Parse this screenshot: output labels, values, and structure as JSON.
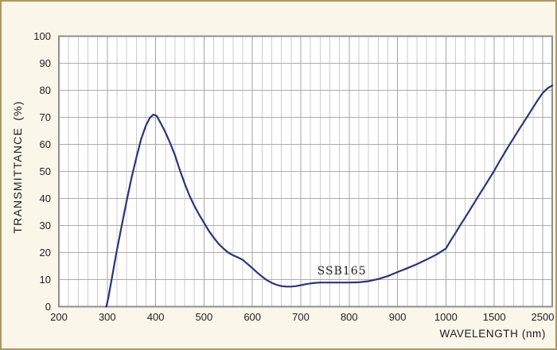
{
  "colors": {
    "page_background": "#faf6ea",
    "page_border": "#b0975f",
    "plot_background": "#ffffff",
    "plot_frame": "#8f8f8f",
    "grid_minor": "#cdcdcd",
    "grid_major": "#a5a5a5",
    "grid_horizontal": "#ababab",
    "curve": "#27357d",
    "text": "#1f1f1f"
  },
  "chart_data": {
    "type": "line",
    "title": "",
    "xlabel": "WAVELENGTH (nm)",
    "ylabel": "TRANSMITTANCE (%)",
    "grid": "on",
    "ylim": [
      0,
      100
    ],
    "y_ticks": [
      0,
      10,
      20,
      30,
      40,
      50,
      60,
      70,
      80,
      90,
      100
    ],
    "x_ticks": [
      200,
      300,
      400,
      500,
      600,
      700,
      800,
      900,
      1000,
      1500,
      2500
    ],
    "x_axis_end": 2700,
    "x_scale_note": "piecewise linear: each major division equals 100 nm from 200-1000, 500 nm from 1000-1500, 1000 nm from 1500-2500; 5 minor divisions per major; axis extends one minor division past 2500 (~2700 nm)",
    "x_minor_grid": [
      220,
      240,
      260,
      280,
      320,
      340,
      360,
      380,
      420,
      440,
      460,
      480,
      520,
      540,
      560,
      580,
      620,
      640,
      660,
      680,
      720,
      740,
      760,
      780,
      820,
      840,
      860,
      880,
      920,
      940,
      960,
      980,
      1100,
      1200,
      1300,
      1400,
      1700,
      1900,
      2100,
      2300
    ],
    "legend_position": "none",
    "annotation": {
      "text": "SSB165",
      "at_nm": 734,
      "at_pct": 11
    },
    "series": [
      {
        "name": "SSB165",
        "points": [
          [
            298,
            0
          ],
          [
            302,
            3
          ],
          [
            306,
            7
          ],
          [
            310,
            11
          ],
          [
            315,
            16
          ],
          [
            320,
            21
          ],
          [
            325,
            25.5
          ],
          [
            330,
            30
          ],
          [
            340,
            39
          ],
          [
            350,
            47.5
          ],
          [
            360,
            55
          ],
          [
            370,
            62
          ],
          [
            380,
            67
          ],
          [
            388,
            69.8
          ],
          [
            395,
            71
          ],
          [
            402,
            70.6
          ],
          [
            410,
            68
          ],
          [
            420,
            64.5
          ],
          [
            430,
            60.5
          ],
          [
            440,
            56
          ],
          [
            450,
            50.5
          ],
          [
            460,
            45.5
          ],
          [
            470,
            41
          ],
          [
            480,
            37.3
          ],
          [
            490,
            34
          ],
          [
            500,
            31
          ],
          [
            510,
            28
          ],
          [
            520,
            25.5
          ],
          [
            530,
            23.3
          ],
          [
            540,
            21.5
          ],
          [
            550,
            20
          ],
          [
            560,
            19
          ],
          [
            570,
            18.2
          ],
          [
            580,
            17.3
          ],
          [
            590,
            15.8
          ],
          [
            600,
            14.2
          ],
          [
            610,
            12.6
          ],
          [
            620,
            11.1
          ],
          [
            630,
            9.8
          ],
          [
            640,
            8.8
          ],
          [
            650,
            8.1
          ],
          [
            660,
            7.6
          ],
          [
            670,
            7.4
          ],
          [
            680,
            7.4
          ],
          [
            690,
            7.6
          ],
          [
            700,
            7.9
          ],
          [
            710,
            8.3
          ],
          [
            720,
            8.6
          ],
          [
            730,
            8.8
          ],
          [
            740,
            8.9
          ],
          [
            760,
            8.9
          ],
          [
            780,
            8.9
          ],
          [
            800,
            8.9
          ],
          [
            820,
            9
          ],
          [
            840,
            9.4
          ],
          [
            860,
            10.2
          ],
          [
            880,
            11.3
          ],
          [
            900,
            12.8
          ],
          [
            920,
            14.2
          ],
          [
            940,
            15.7
          ],
          [
            960,
            17.4
          ],
          [
            980,
            19.2
          ],
          [
            1000,
            21.5
          ],
          [
            1050,
            24.5
          ],
          [
            1100,
            27.3
          ],
          [
            1150,
            30.2
          ],
          [
            1200,
            33
          ],
          [
            1250,
            35.9
          ],
          [
            1300,
            38.8
          ],
          [
            1350,
            41.7
          ],
          [
            1400,
            44.5
          ],
          [
            1450,
            47.4
          ],
          [
            1500,
            50.3
          ],
          [
            1600,
            53.5
          ],
          [
            1700,
            56.5
          ],
          [
            1800,
            59.5
          ],
          [
            1900,
            62.3
          ],
          [
            2000,
            65.2
          ],
          [
            2100,
            68
          ],
          [
            2200,
            70.8
          ],
          [
            2300,
            73.6
          ],
          [
            2400,
            76.4
          ],
          [
            2500,
            79
          ],
          [
            2600,
            80.7
          ],
          [
            2700,
            81.8
          ]
        ]
      }
    ]
  }
}
